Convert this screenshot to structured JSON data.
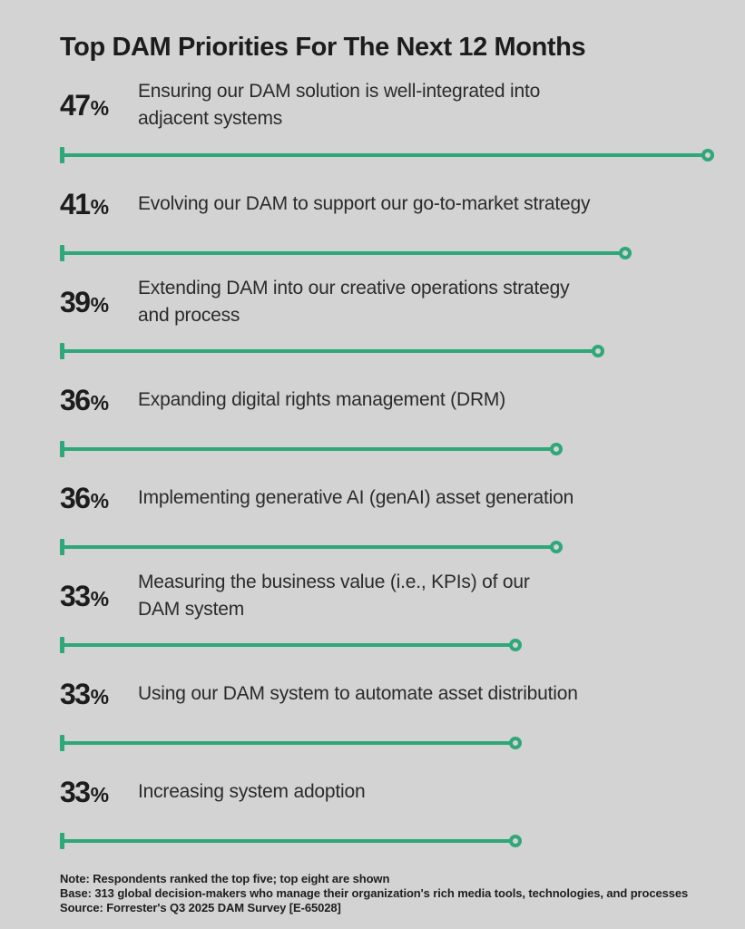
{
  "chart_data": {
    "type": "bar",
    "orientation": "horizontal",
    "title": "Top DAM Priorities For The Next 12 Months",
    "unit": "%",
    "xlim": [
      0,
      50
    ],
    "grid": false,
    "legend": false,
    "value_labels_position": "left",
    "categories": [
      "Ensuring our DAM solution is well-integrated into adjacent systems",
      "Evolving our DAM to support our go-to-market strategy",
      "Extending DAM into our creative operations strategy and process",
      "Expanding digital rights management (DRM)",
      "Implementing generative AI (genAI) asset generation",
      "Measuring the business value (i.e., KPIs) of our DAM system",
      "Using our DAM system to automate asset distribution",
      "Increasing system adoption"
    ],
    "values": [
      47,
      41,
      39,
      36,
      36,
      33,
      33,
      33
    ],
    "bars": [
      {
        "value": 47,
        "label": "Ensuring our DAM solution is well-integrated into adjacent systems",
        "display_lines": [
          "Ensuring our DAM solution is well-integrated into",
          "adjacent systems"
        ]
      },
      {
        "value": 41,
        "label": "Evolving our DAM to support our go-to-market strategy",
        "display_lines": [
          "Evolving our DAM to support our go-to-market strategy"
        ]
      },
      {
        "value": 39,
        "label": "Extending DAM into our creative operations strategy and process",
        "display_lines": [
          "Extending DAM into our creative operations strategy",
          "and process"
        ]
      },
      {
        "value": 36,
        "label": "Expanding digital rights management (DRM)",
        "display_lines": [
          "Expanding digital rights management (DRM)"
        ]
      },
      {
        "value": 36,
        "label": "Implementing generative AI (genAI) asset generation",
        "display_lines": [
          "Implementing generative AI (genAI) asset generation"
        ]
      },
      {
        "value": 33,
        "label": "Measuring the business value (i.e., KPIs) of our DAM system",
        "display_lines": [
          "Measuring the business value (i.e., KPIs) of our",
          "DAM system"
        ]
      },
      {
        "value": 33,
        "label": "Using our DAM system to automate asset distribution",
        "display_lines": [
          "Using our DAM system to automate asset distribution"
        ]
      },
      {
        "value": 33,
        "label": "Increasing system adoption",
        "display_lines": [
          "Increasing system adoption"
        ]
      }
    ],
    "colors": {
      "bar": "#2ea878",
      "background": "#d3d3d3",
      "text": "#1c1c1c"
    }
  },
  "footnotes": {
    "note": "Note: Respondents ranked the top five; top eight are shown",
    "base": "Base: 313 global decision-makers who manage their organization's rich media tools, technologies, and processes",
    "source": "Source: Forrester's Q3 2025 DAM Survey [E-65028]"
  }
}
